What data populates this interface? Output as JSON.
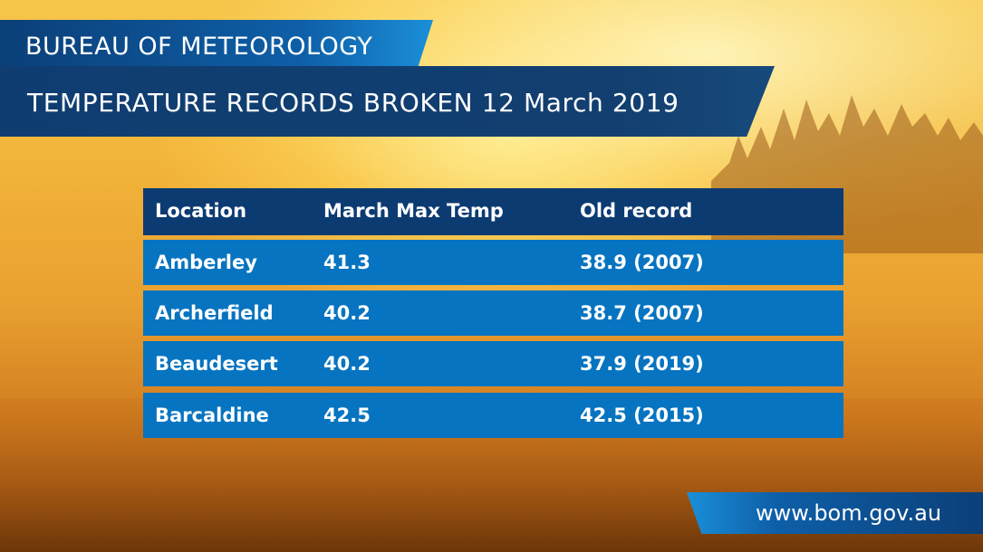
{
  "header": {
    "organisation": "BUREAU OF METEOROLOGY",
    "title": "TEMPERATURE RECORDS BROKEN 12 March 2019"
  },
  "table": {
    "columns": [
      "Location",
      "March Max Temp",
      "Old record"
    ],
    "rows": [
      [
        "Amberley",
        "41.3",
        "38.9 (2007)"
      ],
      [
        "Archerfield",
        "40.2",
        "38.7 (2007)"
      ],
      [
        "Beaudesert",
        "40.2",
        "37.9 (2019)"
      ],
      [
        "Barcaldine",
        "42.5",
        "42.5 (2015)"
      ]
    ]
  },
  "footer": {
    "website": "www.bom.gov.au"
  },
  "colors": {
    "header_bar": "#0c3b72",
    "row_bar": "#0674c0",
    "accent": "#1a8fd8"
  }
}
